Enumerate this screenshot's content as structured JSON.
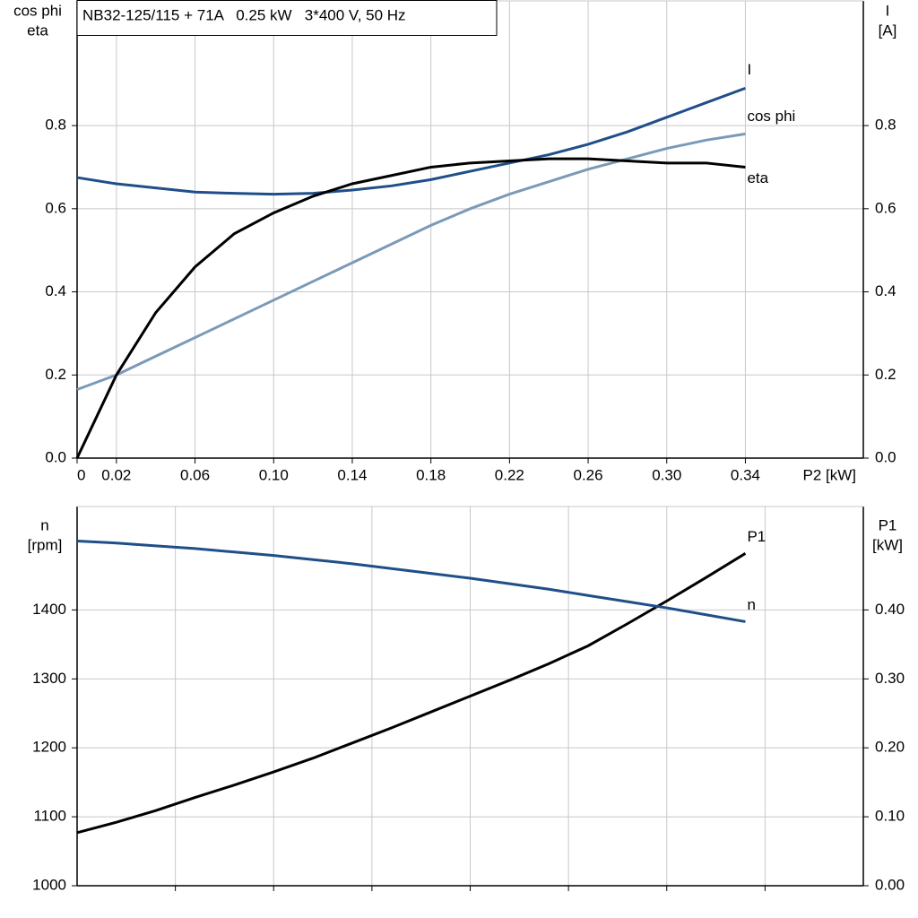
{
  "chart_data": [
    {
      "type": "line",
      "title": "NB32-125/115 + 71A   0.25 kW   3*400 V, 50 Hz",
      "ylabel": [
        "cos phi",
        "eta"
      ],
      "y2label": [
        "I",
        "[A]"
      ],
      "xlabel": "P2 [kW]",
      "xlim": [
        0,
        0.4
      ],
      "xticks": [
        0,
        0.02,
        0.06,
        {
          "value": 0.1,
          "label": "0.10"
        },
        0.14,
        0.18,
        0.22,
        0.26,
        {
          "value": 0.3,
          "label": "0.30"
        },
        0.34
      ],
      "ylim": [
        0,
        1.1
      ],
      "yticks": [
        {
          "value": 0,
          "label": "0.0"
        },
        0.2,
        0.4,
        0.6,
        0.8
      ],
      "y2lim": [
        0,
        1.1
      ],
      "y2ticks": [
        {
          "value": 0,
          "label": "0.0"
        },
        0.2,
        0.4,
        0.6,
        0.8
      ],
      "grid": true,
      "x": [
        0,
        0.02,
        0.04,
        0.06,
        0.08,
        0.1,
        0.12,
        0.14,
        0.16,
        0.18,
        0.2,
        0.22,
        0.24,
        0.26,
        0.28,
        0.3,
        0.32,
        0.34
      ],
      "series": [
        {
          "name": "I",
          "color": "#1f4e89",
          "axis": "y2",
          "values": [
            0.675,
            0.66,
            0.65,
            0.64,
            0.637,
            0.635,
            0.637,
            0.645,
            0.655,
            0.67,
            0.69,
            0.71,
            0.73,
            0.755,
            0.785,
            0.82,
            0.855,
            0.89
          ]
        },
        {
          "name": "cos phi",
          "color": "#7a9ab8",
          "values": [
            0.165,
            0.2,
            0.245,
            0.29,
            0.335,
            0.38,
            0.425,
            0.47,
            0.515,
            0.56,
            0.6,
            0.635,
            0.665,
            0.695,
            0.72,
            0.745,
            0.765,
            0.78
          ]
        },
        {
          "name": "eta",
          "color": "#000000",
          "values": [
            0,
            0.2,
            0.35,
            0.46,
            0.54,
            0.59,
            0.63,
            0.66,
            0.68,
            0.7,
            0.71,
            0.715,
            0.72,
            0.72,
            0.715,
            0.71,
            0.71,
            0.7
          ]
        }
      ]
    },
    {
      "type": "line",
      "ylabel": [
        "n",
        "[rpm]"
      ],
      "y2label": [
        "P1",
        "[kW]"
      ],
      "xlim": [
        0,
        0.4
      ],
      "xticks": [
        0.05,
        0.1,
        0.15,
        0.2,
        0.25,
        0.3,
        0.35
      ],
      "show_x_tick_labels": false,
      "ylim": [
        1000,
        1550
      ],
      "yticks": [
        1000,
        1100,
        1200,
        1300,
        1400
      ],
      "y2lim": [
        0,
        0.55
      ],
      "y2ticks": [
        {
          "value": 0,
          "label": "0.00"
        },
        {
          "value": 0.1,
          "label": "0.10"
        },
        {
          "value": 0.2,
          "label": "0.20"
        },
        {
          "value": 0.3,
          "label": "0.30"
        },
        {
          "value": 0.4,
          "label": "0.40"
        }
      ],
      "grid": true,
      "x": [
        0,
        0.02,
        0.04,
        0.06,
        0.08,
        0.1,
        0.12,
        0.14,
        0.16,
        0.18,
        0.2,
        0.22,
        0.24,
        0.26,
        0.28,
        0.3,
        0.32,
        0.34
      ],
      "series": [
        {
          "name": "P1",
          "color": "#000000",
          "axis": "y2",
          "values": [
            0.077,
            0.092,
            0.109,
            0.128,
            0.146,
            0.165,
            0.185,
            0.207,
            0.229,
            0.252,
            0.275,
            0.298,
            0.322,
            0.348,
            0.38,
            0.413,
            0.447,
            0.482
          ]
        },
        {
          "name": "n",
          "color": "#1f4e89",
          "values": [
            1500,
            1497,
            1493,
            1489,
            1484,
            1479,
            1473,
            1467,
            1460,
            1453,
            1446,
            1438,
            1430,
            1421,
            1412,
            1403,
            1393,
            1383
          ]
        }
      ]
    }
  ]
}
